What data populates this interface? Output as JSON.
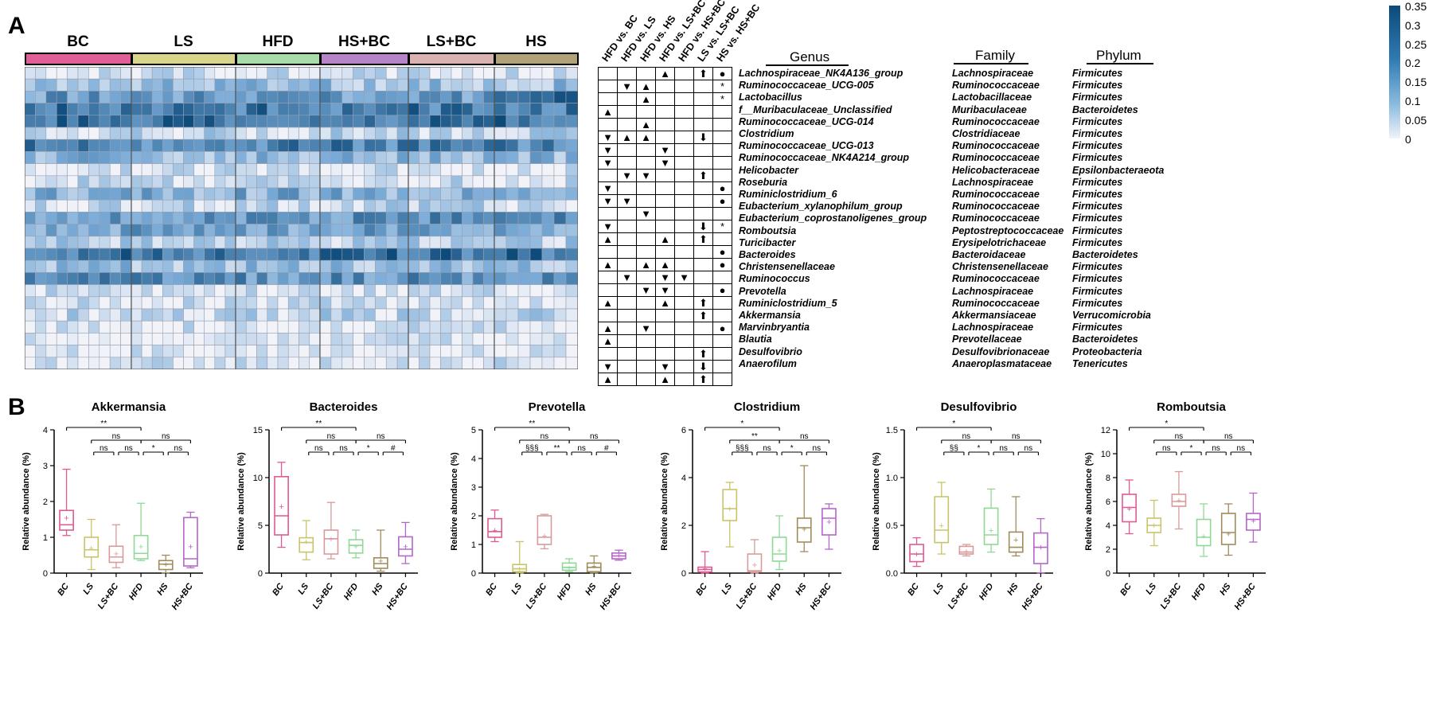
{
  "panels": {
    "a_label": "A",
    "b_label": "B"
  },
  "heatmap": {
    "groups": [
      {
        "name": "BC",
        "color": "#e05f96"
      },
      {
        "name": "LS",
        "color": "#d7d68c"
      },
      {
        "name": "HFD",
        "color": "#a8ddaa"
      },
      {
        "name": "HS+BC",
        "color": "#b685c8"
      },
      {
        "name": "LS+BC",
        "color": "#dab2b0"
      },
      {
        "name": "HS",
        "color": "#b0a279"
      }
    ],
    "colorbar": {
      "ticks": [
        "0.35",
        "0.3",
        "0.25",
        "0.2",
        "0.15",
        "0.1",
        "0.05",
        "0"
      ],
      "low_color": "#f2f3f9",
      "high_color": "#0c4a7a"
    }
  },
  "comparisons": [
    "HFD vs. BC",
    "HFD vs. LS",
    "HFD vs. HS",
    "HFD vs. LS+BC",
    "HFD vs. HS+BC",
    "LS vs. LS+BC",
    "HS vs. HS+BC"
  ],
  "table_headers": {
    "genus": "Genus",
    "family": "Family",
    "phylum": "Phylum"
  },
  "taxa": [
    {
      "genus": "Lachnospiraceae_NK4A136_group",
      "family": "Lachnospiraceae",
      "phylum": "Firmicutes",
      "marks": [
        "",
        "",
        "",
        "▲",
        "",
        "⬆",
        "●"
      ]
    },
    {
      "genus": "Ruminococcaceae_UCG-005",
      "family": "Ruminococcaceae",
      "phylum": "Firmicutes",
      "marks": [
        "",
        "▼",
        "▲",
        "",
        "",
        "",
        "*"
      ]
    },
    {
      "genus": "Lactobacillus",
      "family": "Lactobacillaceae",
      "phylum": "Firmicutes",
      "marks": [
        "",
        "",
        "▲",
        "",
        "",
        "",
        "*"
      ]
    },
    {
      "genus": "f__Muribaculaceae_Unclassified",
      "family": "Muribaculaceae",
      "phylum": "Bacteroidetes",
      "marks": [
        "▲",
        "",
        "",
        "",
        "",
        "",
        ""
      ]
    },
    {
      "genus": "Ruminococcaceae_UCG-014",
      "family": "Ruminococcaceae",
      "phylum": "Firmicutes",
      "marks": [
        "",
        "",
        "▲",
        "",
        "",
        "",
        ""
      ]
    },
    {
      "genus": "Clostridium",
      "family": "Clostridiaceae",
      "phylum": "Firmicutes",
      "marks": [
        "▼",
        "▲",
        "▲",
        "",
        "",
        "⬇",
        ""
      ]
    },
    {
      "genus": "Ruminococcaceae_UCG-013",
      "family": "Ruminococcaceae",
      "phylum": "Firmicutes",
      "marks": [
        "▼",
        "",
        "",
        "▼",
        "",
        "",
        ""
      ]
    },
    {
      "genus": "Ruminococcaceae_NK4A214_group",
      "family": "Ruminococcaceae",
      "phylum": "Firmicutes",
      "marks": [
        "▼",
        "",
        "",
        "▼",
        "",
        "",
        ""
      ]
    },
    {
      "genus": "Helicobacter",
      "family": "Helicobacteraceae",
      "phylum": "Epsilonbacteraeota",
      "marks": [
        "",
        "▼",
        "▼",
        "",
        "",
        "⬆",
        ""
      ]
    },
    {
      "genus": "Roseburia",
      "family": "Lachnospiraceae",
      "phylum": "Firmicutes",
      "marks": [
        "▼",
        "",
        "",
        "",
        "",
        "",
        "●"
      ]
    },
    {
      "genus": "Ruminiclostridium_6",
      "family": "Ruminococcaceae",
      "phylum": "Firmicutes",
      "marks": [
        "▼",
        "▼",
        "",
        "",
        "",
        "",
        "●"
      ]
    },
    {
      "genus": "Eubacterium_xylanophilum_group",
      "family": "Ruminococcaceae",
      "phylum": "Firmicutes",
      "marks": [
        "",
        "",
        "▼",
        "",
        "",
        "",
        ""
      ]
    },
    {
      "genus": "Eubacterium_coprostanoligenes_group",
      "family": "Ruminococcaceae",
      "phylum": "Firmicutes",
      "marks": [
        "▼",
        "",
        "",
        "",
        "",
        "⬇",
        "*"
      ]
    },
    {
      "genus": "Romboutsia",
      "family": "Peptostreptococcaceae",
      "phylum": "Firmicutes",
      "marks": [
        "▲",
        "",
        "",
        "▲",
        "",
        "⬆",
        ""
      ]
    },
    {
      "genus": "Turicibacter",
      "family": "Erysipelotrichaceae",
      "phylum": "Firmicutes",
      "marks": [
        "",
        "",
        "",
        "",
        "",
        "",
        "●"
      ]
    },
    {
      "genus": "Bacteroides",
      "family": "Bacteroidaceae",
      "phylum": "Bacteroidetes",
      "marks": [
        "▲",
        "",
        "▲",
        "▲",
        "",
        "",
        "●"
      ]
    },
    {
      "genus": "Christensenellaceae",
      "family": "Christensenellaceae",
      "phylum": "Firmicutes",
      "marks": [
        "",
        "▼",
        "",
        "▼",
        "▼",
        "",
        ""
      ]
    },
    {
      "genus": "Ruminococcus",
      "family": "Ruminococcaceae",
      "phylum": "Firmicutes",
      "marks": [
        "",
        "",
        "▼",
        "▼",
        "",
        "",
        "●"
      ]
    },
    {
      "genus": "Prevotella",
      "family": "Lachnospiraceae",
      "phylum": "Firmicutes",
      "marks": [
        "▲",
        "",
        "",
        "▲",
        "",
        "⬆",
        ""
      ]
    },
    {
      "genus": "Ruminiclostridium_5",
      "family": "Ruminococcaceae",
      "phylum": "Firmicutes",
      "marks": [
        "",
        "",
        "",
        "",
        "",
        "⬆",
        ""
      ]
    },
    {
      "genus": "Akkermansia",
      "family": "Akkermansiaceae",
      "phylum": "Verrucomicrobia",
      "marks": [
        "▲",
        "",
        "▼",
        "",
        "",
        "",
        "●"
      ]
    },
    {
      "genus": "Marvinbryantia",
      "family": "Lachnospiraceae",
      "phylum": "Firmicutes",
      "marks": [
        "▲",
        "",
        "",
        "",
        "",
        "",
        ""
      ]
    },
    {
      "genus": "Blautia",
      "family": "Prevotellaceae",
      "phylum": "Bacteroidetes",
      "marks": [
        "",
        "",
        "",
        "",
        "",
        "⬆",
        ""
      ]
    },
    {
      "genus": "Desulfovibrio",
      "family": "Desulfovibrionaceae",
      "phylum": "Proteobacteria",
      "marks": [
        "▼",
        "",
        "",
        "▼",
        "",
        "⬇",
        ""
      ]
    },
    {
      "genus": "Anaerofilum",
      "family": "Anaeroplasmataceae",
      "phylum": "Tenericutes",
      "marks": [
        "▲",
        "",
        "",
        "▲",
        "",
        "⬆",
        ""
      ]
    }
  ],
  "chart_data": [
    {
      "type": "box",
      "title": "Akkermansia",
      "ylabel": "Relative abundance (%)",
      "ylim": [
        0,
        4
      ],
      "yticks": [
        "0",
        "1",
        "2",
        "3",
        "4"
      ],
      "categories": [
        "BC",
        "LS",
        "LS+BC",
        "HFD",
        "HS",
        "HS+BC"
      ],
      "colors": [
        "#e05a93",
        "#c9c46a",
        "#d89a9a",
        "#8fd896",
        "#a08c5a",
        "#b466c9"
      ],
      "boxes": [
        {
          "min": 1.05,
          "q1": 1.2,
          "median": 1.35,
          "q3": 1.75,
          "max": 2.9,
          "mean": 1.55
        },
        {
          "min": 0.1,
          "q1": 0.45,
          "median": 0.65,
          "q3": 1.0,
          "max": 1.5,
          "mean": 0.7
        },
        {
          "min": 0.15,
          "q1": 0.3,
          "median": 0.45,
          "q3": 0.75,
          "max": 1.35,
          "mean": 0.55
        },
        {
          "min": 0.35,
          "q1": 0.4,
          "median": 0.55,
          "q3": 1.05,
          "max": 1.95,
          "mean": 0.75
        },
        {
          "min": 0.0,
          "q1": 0.1,
          "median": 0.25,
          "q3": 0.35,
          "max": 0.5,
          "mean": 0.25
        },
        {
          "min": 0.15,
          "q1": 0.2,
          "median": 0.4,
          "q3": 1.55,
          "max": 1.7,
          "mean": 0.75
        }
      ],
      "sig": [
        {
          "from": 0,
          "to": 3,
          "label": "**"
        },
        {
          "from": 1,
          "to": 3,
          "label": "ns"
        },
        {
          "from": 3,
          "to": 5,
          "label": "ns"
        },
        {
          "from": 1,
          "to": 2,
          "label": "ns"
        },
        {
          "from": 2,
          "to": 3,
          "label": "ns"
        },
        {
          "from": 3,
          "to": 4,
          "label": "*"
        },
        {
          "from": 4,
          "to": 5,
          "label": "ns"
        }
      ]
    },
    {
      "type": "box",
      "title": "Bacteroides",
      "ylabel": "Relative abundance (%)",
      "ylim": [
        0,
        15
      ],
      "yticks": [
        "0",
        "5",
        "10",
        "15"
      ],
      "categories": [
        "BC",
        "LS",
        "LS+BC",
        "HFD",
        "HS",
        "HS+BC"
      ],
      "colors": [
        "#e05a93",
        "#c9c46a",
        "#d89a9a",
        "#8fd896",
        "#a08c5a",
        "#b466c9"
      ],
      "boxes": [
        {
          "min": 2.7,
          "q1": 4.0,
          "median": 6.0,
          "q3": 10.1,
          "max": 11.6,
          "mean": 7.0
        },
        {
          "min": 1.4,
          "q1": 2.2,
          "median": 3.2,
          "q3": 3.7,
          "max": 5.5,
          "mean": 3.3
        },
        {
          "min": 1.5,
          "q1": 2.0,
          "median": 3.6,
          "q3": 4.5,
          "max": 7.4,
          "mean": 3.6
        },
        {
          "min": 1.6,
          "q1": 2.1,
          "median": 2.9,
          "q3": 3.5,
          "max": 4.5,
          "mean": 2.8
        },
        {
          "min": 0.2,
          "q1": 0.5,
          "median": 1.0,
          "q3": 1.6,
          "max": 4.5,
          "mean": 1.3
        },
        {
          "min": 1.0,
          "q1": 1.8,
          "median": 2.5,
          "q3": 3.8,
          "max": 5.3,
          "mean": 2.8
        }
      ],
      "sig": [
        {
          "from": 0,
          "to": 3,
          "label": "**"
        },
        {
          "from": 1,
          "to": 3,
          "label": "ns"
        },
        {
          "from": 3,
          "to": 5,
          "label": "ns"
        },
        {
          "from": 1,
          "to": 2,
          "label": "ns"
        },
        {
          "from": 2,
          "to": 3,
          "label": "ns"
        },
        {
          "from": 3,
          "to": 4,
          "label": "*"
        },
        {
          "from": 4,
          "to": 5,
          "label": "#"
        }
      ]
    },
    {
      "type": "box",
      "title": "Prevotella",
      "ylabel": "Relative abundance (%)",
      "ylim": [
        0,
        5
      ],
      "yticks": [
        "0",
        "1",
        "2",
        "3",
        "4",
        "5"
      ],
      "categories": [
        "BC",
        "LS",
        "LS+BC",
        "HFD",
        "HS",
        "HS+BC"
      ],
      "colors": [
        "#e05a93",
        "#c9c46a",
        "#d89a9a",
        "#8fd896",
        "#a08c5a",
        "#b466c9"
      ],
      "boxes": [
        {
          "min": 1.1,
          "q1": 1.25,
          "median": 1.45,
          "q3": 1.9,
          "max": 2.2,
          "mean": 1.5
        },
        {
          "min": 0.0,
          "q1": 0.05,
          "median": 0.15,
          "q3": 0.3,
          "max": 1.1,
          "mean": 0.15
        },
        {
          "min": 0.85,
          "q1": 1.0,
          "median": 1.25,
          "q3": 2.0,
          "max": 2.05,
          "mean": 1.3
        },
        {
          "min": 0.05,
          "q1": 0.1,
          "median": 0.2,
          "q3": 0.35,
          "max": 0.5,
          "mean": 0.2
        },
        {
          "min": 0.0,
          "q1": 0.05,
          "median": 0.2,
          "q3": 0.35,
          "max": 0.6,
          "mean": 0.25
        },
        {
          "min": 0.45,
          "q1": 0.5,
          "median": 0.6,
          "q3": 0.7,
          "max": 0.8,
          "mean": 0.62
        }
      ],
      "sig": [
        {
          "from": 0,
          "to": 3,
          "label": "**"
        },
        {
          "from": 1,
          "to": 3,
          "label": "ns"
        },
        {
          "from": 3,
          "to": 5,
          "label": "ns"
        },
        {
          "from": 1,
          "to": 2,
          "label": "§§§"
        },
        {
          "from": 2,
          "to": 3,
          "label": "**"
        },
        {
          "from": 3,
          "to": 4,
          "label": "ns"
        },
        {
          "from": 4,
          "to": 5,
          "label": "#"
        }
      ]
    },
    {
      "type": "box",
      "title": "Clostridium",
      "ylabel": "Relative abundance (%)",
      "ylim": [
        0,
        6
      ],
      "yticks": [
        "0",
        "2",
        "4",
        "6"
      ],
      "categories": [
        "BC",
        "LS",
        "LS+BC",
        "HFD",
        "HS",
        "HS+BC"
      ],
      "colors": [
        "#e05a93",
        "#c9c46a",
        "#d89a9a",
        "#8fd896",
        "#a08c5a",
        "#b466c9"
      ],
      "boxes": [
        {
          "min": 0.0,
          "q1": 0.05,
          "median": 0.15,
          "q3": 0.25,
          "max": 0.9,
          "mean": 0.2
        },
        {
          "min": 1.1,
          "q1": 2.2,
          "median": 2.7,
          "q3": 3.5,
          "max": 3.8,
          "mean": 2.7
        },
        {
          "min": 0.0,
          "q1": 0.05,
          "median": 0.1,
          "q3": 0.8,
          "max": 1.4,
          "mean": 0.35
        },
        {
          "min": 0.15,
          "q1": 0.5,
          "median": 0.8,
          "q3": 1.5,
          "max": 2.4,
          "mean": 0.95
        },
        {
          "min": 0.9,
          "q1": 1.3,
          "median": 1.9,
          "q3": 2.3,
          "max": 4.5,
          "mean": 1.85
        },
        {
          "min": 1.0,
          "q1": 1.6,
          "median": 2.3,
          "q3": 2.7,
          "max": 2.9,
          "mean": 2.15
        }
      ],
      "sig": [
        {
          "from": 0,
          "to": 3,
          "label": "*"
        },
        {
          "from": 1,
          "to": 3,
          "label": "**"
        },
        {
          "from": 3,
          "to": 5,
          "label": "ns"
        },
        {
          "from": 1,
          "to": 2,
          "label": "§§§"
        },
        {
          "from": 2,
          "to": 3,
          "label": "ns"
        },
        {
          "from": 3,
          "to": 4,
          "label": "*"
        },
        {
          "from": 4,
          "to": 5,
          "label": "ns"
        }
      ]
    },
    {
      "type": "box",
      "title": "Desulfovibrio",
      "ylabel": "Relative abundance (%)",
      "ylim": [
        0,
        1.5
      ],
      "yticks": [
        "0.0",
        "0.5",
        "1.0",
        "1.5"
      ],
      "categories": [
        "BC",
        "LS",
        "LS+BC",
        "HFD",
        "HS",
        "HS+BC"
      ],
      "colors": [
        "#e05a93",
        "#c9c46a",
        "#d89a9a",
        "#8fd896",
        "#a08c5a",
        "#b466c9"
      ],
      "boxes": [
        {
          "min": 0.07,
          "q1": 0.12,
          "median": 0.2,
          "q3": 0.3,
          "max": 0.37,
          "mean": 0.2
        },
        {
          "min": 0.2,
          "q1": 0.32,
          "median": 0.45,
          "q3": 0.8,
          "max": 0.95,
          "mean": 0.5
        },
        {
          "min": 0.18,
          "q1": 0.2,
          "median": 0.22,
          "q3": 0.28,
          "max": 0.3,
          "mean": 0.23
        },
        {
          "min": 0.22,
          "q1": 0.3,
          "median": 0.4,
          "q3": 0.68,
          "max": 0.88,
          "mean": 0.45
        },
        {
          "min": 0.18,
          "q1": 0.22,
          "median": 0.27,
          "q3": 0.43,
          "max": 0.8,
          "mean": 0.35
        },
        {
          "min": 0.0,
          "q1": 0.1,
          "median": 0.27,
          "q3": 0.42,
          "max": 0.57,
          "mean": 0.27
        }
      ],
      "sig": [
        {
          "from": 0,
          "to": 3,
          "label": "*"
        },
        {
          "from": 1,
          "to": 3,
          "label": "ns"
        },
        {
          "from": 3,
          "to": 5,
          "label": "ns"
        },
        {
          "from": 1,
          "to": 2,
          "label": "§§"
        },
        {
          "from": 2,
          "to": 3,
          "label": "*"
        },
        {
          "from": 3,
          "to": 4,
          "label": "ns"
        },
        {
          "from": 4,
          "to": 5,
          "label": "ns"
        }
      ]
    },
    {
      "type": "box",
      "title": "Romboutsia",
      "ylabel": "Relative abundance (%)",
      "ylim": [
        0,
        12
      ],
      "yticks": [
        "0",
        "2",
        "4",
        "6",
        "8",
        "10",
        "12"
      ],
      "categories": [
        "BC",
        "LS",
        "LS+BC",
        "HFD",
        "HS",
        "HS+BC"
      ],
      "colors": [
        "#e05a93",
        "#c9c46a",
        "#d89a9a",
        "#8fd896",
        "#a08c5a",
        "#b466c9"
      ],
      "boxes": [
        {
          "min": 3.3,
          "q1": 4.3,
          "median": 5.5,
          "q3": 6.6,
          "max": 7.8,
          "mean": 5.4
        },
        {
          "min": 2.3,
          "q1": 3.4,
          "median": 4.0,
          "q3": 4.6,
          "max": 6.1,
          "mean": 4.0
        },
        {
          "min": 3.7,
          "q1": 5.6,
          "median": 6.0,
          "q3": 6.6,
          "max": 8.5,
          "mean": 6.1
        },
        {
          "min": 1.4,
          "q1": 2.3,
          "median": 3.0,
          "q3": 4.5,
          "max": 5.8,
          "mean": 3.1
        },
        {
          "min": 1.5,
          "q1": 2.4,
          "median": 3.4,
          "q3": 5.0,
          "max": 5.8,
          "mean": 3.3
        },
        {
          "min": 2.6,
          "q1": 3.6,
          "median": 4.5,
          "q3": 5.0,
          "max": 6.7,
          "mean": 4.4
        }
      ],
      "sig": [
        {
          "from": 0,
          "to": 3,
          "label": "*"
        },
        {
          "from": 1,
          "to": 3,
          "label": "ns"
        },
        {
          "from": 3,
          "to": 5,
          "label": "ns"
        },
        {
          "from": 1,
          "to": 2,
          "label": "ns"
        },
        {
          "from": 2,
          "to": 3,
          "label": "*"
        },
        {
          "from": 3,
          "to": 4,
          "label": "ns"
        },
        {
          "from": 4,
          "to": 5,
          "label": "ns"
        }
      ]
    }
  ]
}
